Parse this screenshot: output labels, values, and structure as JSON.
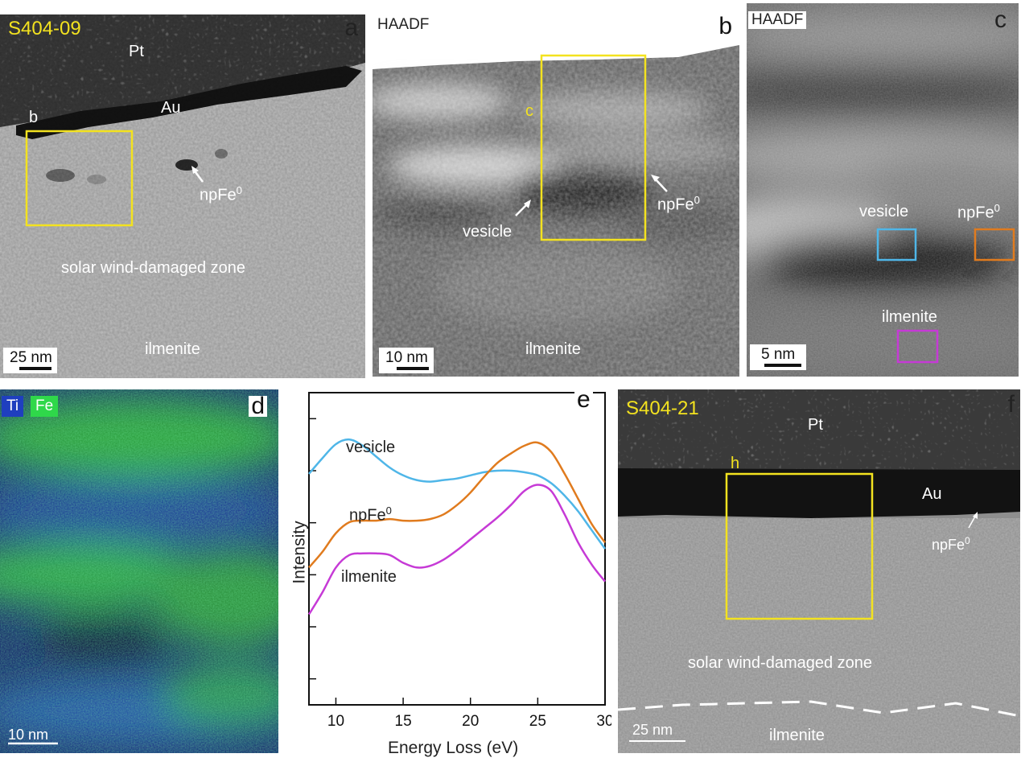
{
  "panel_a": {
    "letter": "a",
    "sample_id": "S404-09",
    "labels": {
      "pt": "Pt",
      "au": "Au",
      "box": "b",
      "npfe": "npFe",
      "npfe_sup": "0",
      "zone": "solar wind-damaged zone",
      "mineral": "ilmenite"
    },
    "scalebar": "25 nm",
    "box_color": "#f3e21f"
  },
  "panel_b": {
    "letter": "b",
    "mode": "HAADF",
    "labels": {
      "box": "c",
      "npfe": "npFe",
      "npfe_sup": "0",
      "vesicle": "vesicle",
      "mineral": "ilmenite"
    },
    "scalebar": "10 nm",
    "box_color": "#f3e21f"
  },
  "panel_c": {
    "letter": "c",
    "mode": "HAADF",
    "labels": {
      "vesicle": "vesicle",
      "npfe": "npFe",
      "npfe_sup": "0",
      "mineral": "ilmenite"
    },
    "scalebar": "5 nm",
    "roi_colors": {
      "vesicle": "#4fb6e8",
      "npfe": "#e07b1e",
      "ilmenite": "#c63ad6"
    }
  },
  "panel_d": {
    "letter": "d",
    "legend": [
      {
        "label": "Ti",
        "color": "#1f3fbf"
      },
      {
        "label": "Fe",
        "color": "#2fd84a"
      }
    ],
    "scalebar": "10 nm"
  },
  "panel_f": {
    "letter": "f",
    "sample_id": "S404-21",
    "labels": {
      "pt": "Pt",
      "au": "Au",
      "box": "h",
      "npfe": "npFe",
      "npfe_sup": "0",
      "zone": "solar wind-damaged zone",
      "mineral": "ilmenite"
    },
    "scalebar": "25 nm",
    "box_color": "#f3e21f"
  },
  "chart_data": {
    "type": "line",
    "panel_letter": "e",
    "xlabel": "Energy Loss (eV)",
    "ylabel": "Intensity",
    "xlim": [
      8,
      30
    ],
    "ylim": [
      0,
      10
    ],
    "x_ticks": [
      10,
      15,
      20,
      25,
      30
    ],
    "y_tick_count": 6,
    "grid": false,
    "series": [
      {
        "name": "vesicle",
        "color": "#4fb6e8",
        "x": [
          8,
          9,
          10,
          11,
          12,
          13,
          14,
          15,
          16,
          17,
          18,
          19,
          20,
          21,
          22,
          23,
          24,
          25,
          26,
          27,
          28,
          29,
          30
        ],
        "y": [
          7.4,
          7.9,
          8.35,
          8.5,
          8.3,
          7.95,
          7.6,
          7.35,
          7.2,
          7.15,
          7.2,
          7.25,
          7.35,
          7.45,
          7.5,
          7.5,
          7.45,
          7.35,
          7.1,
          6.7,
          6.2,
          5.6,
          5.0
        ]
      },
      {
        "name": "npFe0",
        "color": "#e07b1e",
        "x": [
          8,
          9,
          10,
          11,
          12,
          13,
          14,
          15,
          16,
          17,
          18,
          19,
          20,
          21,
          22,
          23,
          24,
          25,
          26,
          27,
          28,
          29,
          30
        ],
        "y": [
          4.4,
          4.9,
          5.5,
          5.85,
          5.9,
          5.9,
          5.95,
          5.9,
          5.9,
          5.95,
          6.1,
          6.4,
          6.8,
          7.3,
          7.75,
          8.05,
          8.3,
          8.4,
          8.1,
          7.4,
          6.6,
          5.8,
          5.2
        ]
      },
      {
        "name": "ilmenite",
        "color": "#c63ad6",
        "x": [
          8,
          9,
          10,
          11,
          12,
          13,
          14,
          15,
          16,
          17,
          18,
          19,
          20,
          21,
          22,
          23,
          24,
          25,
          26,
          27,
          28,
          29,
          30
        ],
        "y": [
          2.9,
          3.6,
          4.4,
          4.8,
          4.85,
          4.85,
          4.8,
          4.55,
          4.4,
          4.45,
          4.65,
          4.95,
          5.3,
          5.65,
          6.0,
          6.4,
          6.85,
          7.05,
          6.85,
          6.1,
          5.2,
          4.5,
          3.95
        ]
      }
    ],
    "annotations": {
      "vesicle": "vesicle",
      "npfe": "npFe",
      "npfe_sup": "0",
      "ilmenite": "ilmenite"
    }
  }
}
